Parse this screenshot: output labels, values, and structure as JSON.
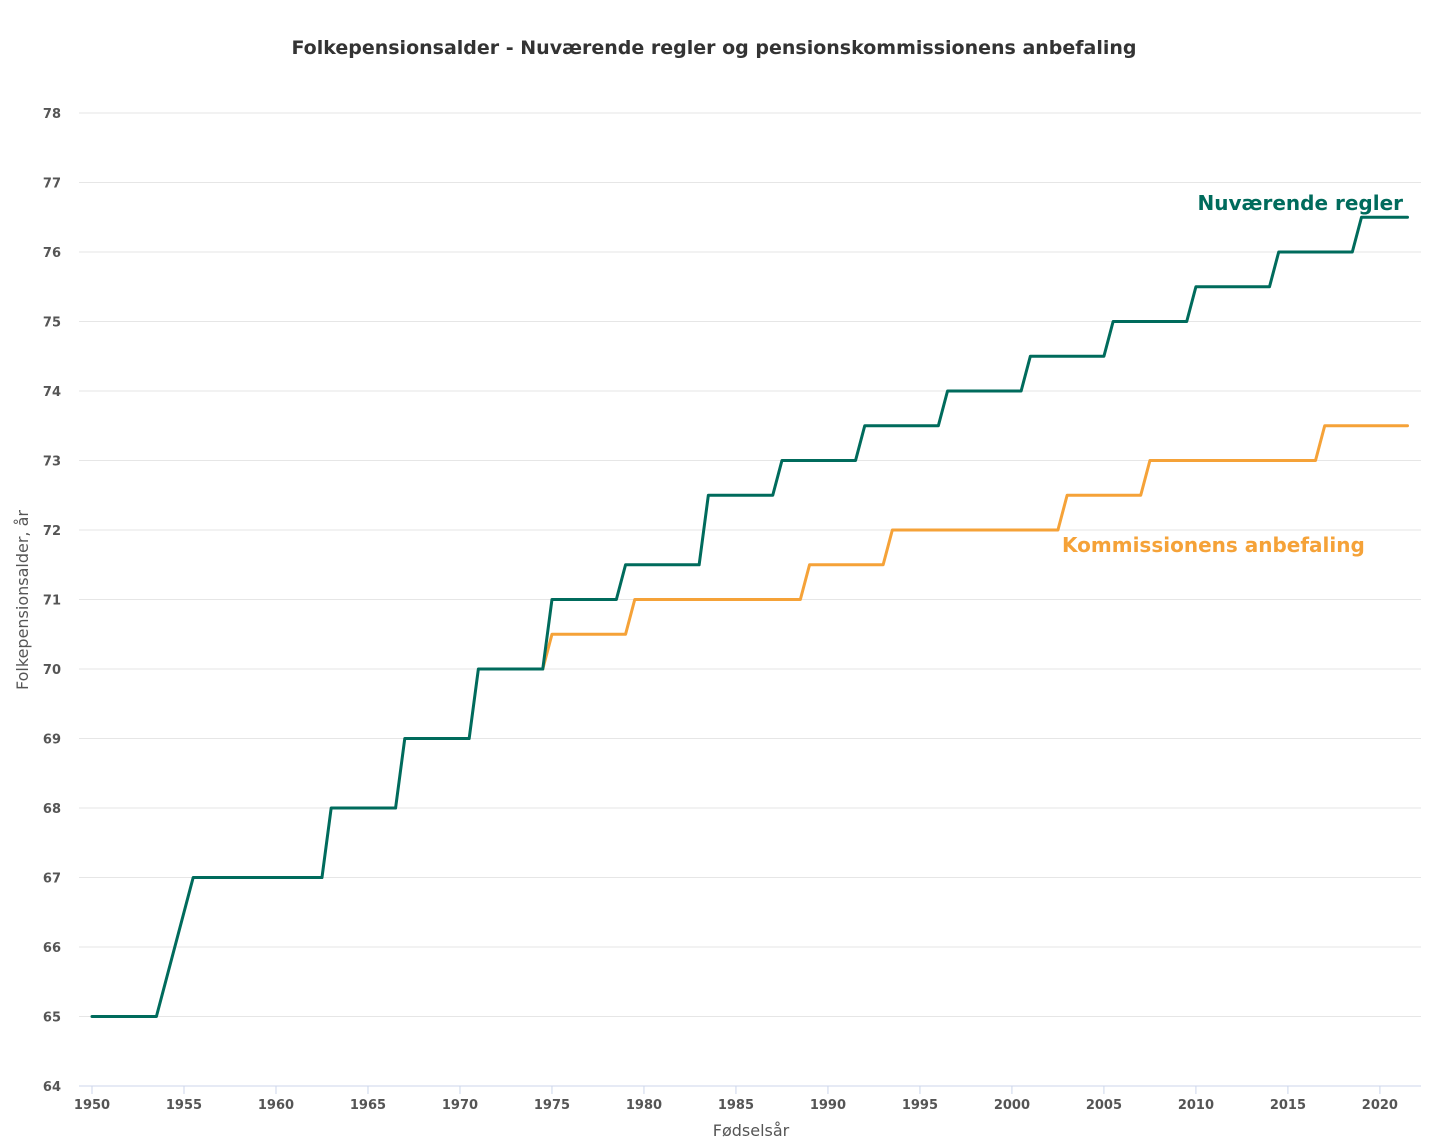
{
  "chart_data": {
    "type": "line",
    "title": "Folkepensionsalder - Nuværende regler og pensionskommissionens anbefaling",
    "xlabel": "Fødselsår",
    "ylabel": "Folkepensionsalder, år",
    "xlim": [
      1950,
      2021.5
    ],
    "ylim": [
      64,
      78
    ],
    "x_ticks": [
      1950,
      1955,
      1960,
      1965,
      1970,
      1975,
      1980,
      1985,
      1990,
      1995,
      2000,
      2005,
      2010,
      2015,
      2020
    ],
    "y_ticks": [
      64,
      65,
      66,
      67,
      68,
      69,
      70,
      71,
      72,
      73,
      74,
      75,
      76,
      77,
      78
    ],
    "grid": true,
    "legend": "direct labels at line ends",
    "colors": {
      "title": "#333333",
      "tick": "#555555",
      "grid": "#e6e6e6",
      "axis": "#ccd6eb"
    },
    "series": [
      {
        "name": "Nuværende regler",
        "color": "#006b5c",
        "points": [
          [
            1950,
            65
          ],
          [
            1953.5,
            65
          ],
          [
            1955.5,
            67
          ],
          [
            1962.5,
            67
          ],
          [
            1963,
            68
          ],
          [
            1966.5,
            68
          ],
          [
            1967,
            69
          ],
          [
            1970.5,
            69
          ],
          [
            1971,
            70
          ],
          [
            1974.5,
            70
          ],
          [
            1975,
            71
          ],
          [
            1978.5,
            71
          ],
          [
            1979,
            71.5
          ],
          [
            1983,
            71.5
          ],
          [
            1983.5,
            72.5
          ],
          [
            1987,
            72.5
          ],
          [
            1987.5,
            73
          ],
          [
            1991.5,
            73
          ],
          [
            1992,
            73.5
          ],
          [
            1996,
            73.5
          ],
          [
            1996.5,
            74
          ],
          [
            2000.5,
            74
          ],
          [
            2001,
            74.5
          ],
          [
            2005,
            74.5
          ],
          [
            2005.5,
            75
          ],
          [
            2009.5,
            75
          ],
          [
            2010,
            75.5
          ],
          [
            2014,
            75.5
          ],
          [
            2014.5,
            76
          ],
          [
            2018.5,
            76
          ],
          [
            2019,
            76.5
          ],
          [
            2021.5,
            76.5
          ]
        ]
      },
      {
        "name": "Kommissionens anbefaling",
        "color": "#f5a238",
        "points": [
          [
            1974.5,
            70
          ],
          [
            1975,
            70.5
          ],
          [
            1979,
            70.5
          ],
          [
            1979.5,
            71
          ],
          [
            1988.5,
            71
          ],
          [
            1989,
            71.5
          ],
          [
            1993,
            71.5
          ],
          [
            1993.5,
            72
          ],
          [
            2002.5,
            72
          ],
          [
            2003,
            72.5
          ],
          [
            2007,
            72.5
          ],
          [
            2007.5,
            73
          ],
          [
            2016.5,
            73
          ],
          [
            2017,
            73.5
          ],
          [
            2021.5,
            73.5
          ]
        ]
      }
    ]
  }
}
